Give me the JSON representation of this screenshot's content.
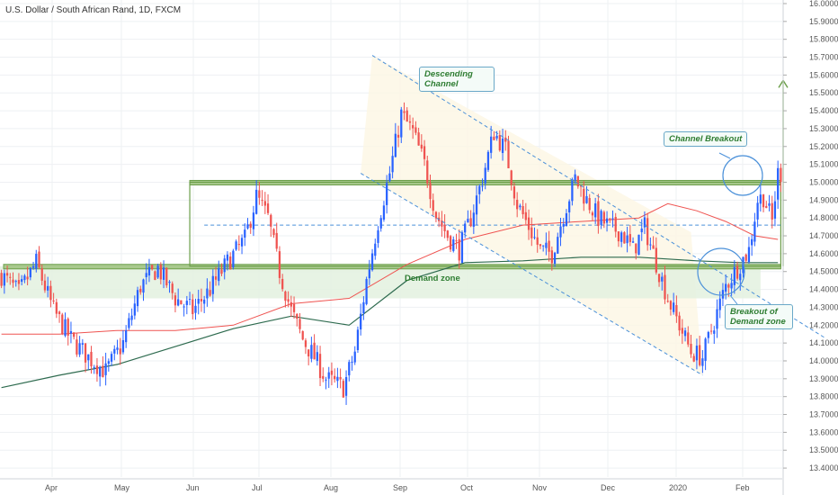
{
  "header": {
    "title": "U.S. Dollar / South African Rand, 1D, FXCM"
  },
  "colors": {
    "up": "#2962ff",
    "down": "#ef5350",
    "ma_fast": "#ef5350",
    "ma_slow": "#2e6b4f",
    "zone": "#6b9e49",
    "channel": "#4a90d9",
    "grid": "#eef0f3",
    "axis_text": "#555555"
  },
  "chart_data": {
    "type": "candlestick",
    "title": "U.S. Dollar / South African Rand, 1D, FXCM",
    "x_labels": [
      "Apr",
      "May",
      "Jun",
      "Jul",
      "Aug",
      "Sep",
      "Oct",
      "Nov",
      "Dec",
      "2020",
      "Feb"
    ],
    "y_ticks": [
      "16.00000",
      "15.90000",
      "15.80000",
      "15.70000",
      "15.60000",
      "15.50000",
      "15.40000",
      "15.30000",
      "15.20000",
      "15.10000",
      "15.00000",
      "14.90000",
      "14.80000",
      "14.70000",
      "14.60000",
      "14.50000",
      "14.40000",
      "14.30000",
      "14.20000",
      "14.10000",
      "14.00000",
      "13.90000",
      "13.80000",
      "13.70000",
      "13.60000",
      "13.50000",
      "13.40000"
    ],
    "ylim": [
      13.35,
      16.02
    ],
    "close_path": [
      [
        0,
        14.48
      ],
      [
        6,
        14.38
      ],
      [
        12,
        14.55
      ],
      [
        18,
        14.28
      ],
      [
        24,
        14.12
      ],
      [
        30,
        14.02
      ],
      [
        36,
        13.94
      ],
      [
        42,
        14.1
      ],
      [
        48,
        14.42
      ],
      [
        54,
        14.52
      ],
      [
        60,
        14.35
      ],
      [
        66,
        14.28
      ],
      [
        72,
        14.4
      ],
      [
        78,
        14.55
      ],
      [
        84,
        14.68
      ],
      [
        88,
        14.92
      ],
      [
        92,
        14.8
      ],
      [
        96,
        14.5
      ],
      [
        100,
        14.28
      ],
      [
        104,
        14.12
      ],
      [
        108,
        14.02
      ],
      [
        112,
        13.9
      ],
      [
        118,
        13.85
      ],
      [
        122,
        14.05
      ],
      [
        126,
        14.45
      ],
      [
        130,
        14.78
      ],
      [
        134,
        15.05
      ],
      [
        138,
        15.38
      ],
      [
        142,
        15.28
      ],
      [
        146,
        15.1
      ],
      [
        150,
        14.82
      ],
      [
        154,
        14.7
      ],
      [
        158,
        14.62
      ],
      [
        162,
        14.8
      ],
      [
        166,
        15.02
      ],
      [
        170,
        15.28
      ],
      [
        174,
        15.18
      ],
      [
        178,
        14.88
      ],
      [
        182,
        14.75
      ],
      [
        186,
        14.62
      ],
      [
        190,
        14.6
      ],
      [
        194,
        14.82
      ],
      [
        198,
        15.02
      ],
      [
        202,
        14.9
      ],
      [
        206,
        14.8
      ],
      [
        210,
        14.75
      ],
      [
        214,
        14.72
      ],
      [
        218,
        14.62
      ],
      [
        222,
        14.75
      ],
      [
        226,
        14.55
      ],
      [
        230,
        14.35
      ],
      [
        234,
        14.2
      ],
      [
        238,
        14.05
      ],
      [
        242,
        14.02
      ],
      [
        246,
        14.22
      ],
      [
        250,
        14.42
      ],
      [
        254,
        14.52
      ],
      [
        258,
        14.62
      ],
      [
        261,
        14.9
      ],
      [
        263,
        14.92
      ],
      [
        266,
        14.78
      ],
      [
        268,
        15.05
      ]
    ],
    "sma_fast": [
      [
        0,
        14.15
      ],
      [
        20,
        14.15
      ],
      [
        40,
        14.17
      ],
      [
        60,
        14.17
      ],
      [
        80,
        14.2
      ],
      [
        100,
        14.32
      ],
      [
        120,
        14.35
      ],
      [
        140,
        14.54
      ],
      [
        160,
        14.68
      ],
      [
        180,
        14.76
      ],
      [
        200,
        14.78
      ],
      [
        220,
        14.8
      ],
      [
        230,
        14.88
      ],
      [
        240,
        14.84
      ],
      [
        250,
        14.78
      ],
      [
        260,
        14.7
      ],
      [
        268,
        14.68
      ]
    ],
    "sma_slow": [
      [
        0,
        13.85
      ],
      [
        20,
        13.92
      ],
      [
        40,
        13.98
      ],
      [
        60,
        14.08
      ],
      [
        80,
        14.18
      ],
      [
        100,
        14.25
      ],
      [
        120,
        14.2
      ],
      [
        140,
        14.45
      ],
      [
        160,
        14.55
      ],
      [
        180,
        14.56
      ],
      [
        200,
        14.58
      ],
      [
        220,
        14.58
      ],
      [
        240,
        14.56
      ],
      [
        255,
        14.55
      ],
      [
        268,
        14.55
      ]
    ],
    "demand_zone": {
      "top": 14.53,
      "bottom": 14.35,
      "label": "Demand zone"
    },
    "resistance_zone": {
      "level": 15.0
    },
    "mid_level": 14.76,
    "channel_upper": [
      [
        128,
        15.71
      ],
      [
        238,
        14.72
      ]
    ],
    "channel_lower": [
      [
        124,
        15.05
      ],
      [
        242,
        13.92
      ]
    ],
    "measured_move": {
      "from": 14.53,
      "to": 15.57
    },
    "annotations": [
      "Descending Channel",
      "Channel Breakout",
      "Breakout of Demand zone"
    ]
  },
  "annotations": {
    "descending_channel": "Descending Channel",
    "channel_breakout": "Channel Breakout",
    "demand_breakout": "Breakout of Demand zone",
    "demand_zone": "Demand zone"
  }
}
